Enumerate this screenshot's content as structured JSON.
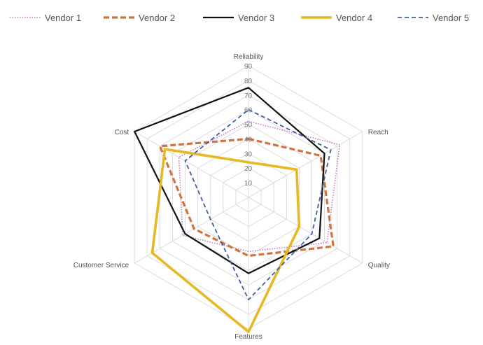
{
  "chart_data": {
    "type": "radar",
    "axes": [
      "Reliability",
      "Reach",
      "Quality",
      "Features",
      "Customer Service",
      "Cost"
    ],
    "r_range": [
      0,
      90
    ],
    "ticks": [
      10,
      20,
      30,
      40,
      50,
      60,
      70,
      80,
      90
    ],
    "tick_labels": [
      "10",
      "20",
      "30",
      "40",
      "50",
      "60",
      "70",
      "80",
      "90"
    ],
    "grid": true,
    "legend_position": "top",
    "series": [
      {
        "name": "Vendor 1",
        "values": [
          52,
          72,
          62,
          37,
          52,
          55
        ],
        "color": "#c879c8",
        "style": "dotted"
      },
      {
        "name": "Vendor 2",
        "values": [
          40,
          57,
          67,
          40,
          43,
          70
        ],
        "color": "#d0743c",
        "style": "dashed"
      },
      {
        "name": "Vendor 3",
        "values": [
          75,
          60,
          56,
          52,
          50,
          90
        ],
        "color": "#111111",
        "style": "solid"
      },
      {
        "name": "Vendor 4",
        "values": [
          24,
          38,
          40,
          92,
          76,
          66
        ],
        "color": "#e6b822",
        "style": "solid-thick"
      },
      {
        "name": "Vendor 5",
        "values": [
          60,
          65,
          50,
          70,
          30,
          50
        ],
        "color": "#3f5f9f",
        "style": "dashed-thin"
      }
    ]
  }
}
